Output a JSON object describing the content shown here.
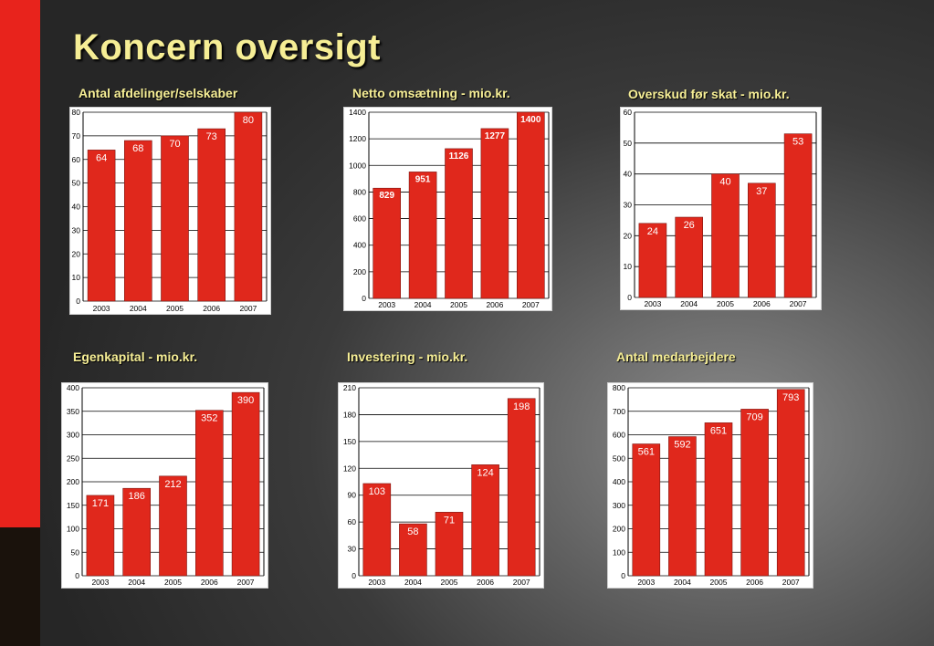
{
  "page_title": "Koncern oversigt",
  "colors": {
    "accent": "#e8231c",
    "title_text": "#f6ee95",
    "bar": "#e0281c"
  },
  "chart_data": [
    {
      "type": "bar",
      "title": "Antal afdelinger/selskaber",
      "categories": [
        "2003",
        "2004",
        "2005",
        "2006",
        "2007"
      ],
      "values": [
        64,
        68,
        70,
        73,
        80
      ],
      "ylim": [
        0,
        80
      ],
      "yticks": [
        0,
        10,
        20,
        30,
        40,
        50,
        60,
        70,
        80
      ],
      "grid": true,
      "data_labels": true
    },
    {
      "type": "bar",
      "title": "Netto omsætning - mio.kr.",
      "categories": [
        "2003",
        "2004",
        "2005",
        "2006",
        "2007"
      ],
      "values": [
        829,
        951,
        1126,
        1277,
        1400
      ],
      "ylim": [
        0,
        1400
      ],
      "yticks": [
        0,
        200,
        400,
        600,
        800,
        1000,
        1200,
        1400
      ],
      "grid": true,
      "data_labels": true
    },
    {
      "type": "bar",
      "title": "Overskud før skat - mio.kr.",
      "categories": [
        "2003",
        "2004",
        "2005",
        "2006",
        "2007"
      ],
      "values": [
        24,
        26,
        40,
        37,
        53
      ],
      "ylim": [
        0,
        60
      ],
      "yticks": [
        0,
        10,
        20,
        30,
        40,
        50,
        60
      ],
      "grid": true,
      "data_labels": true
    },
    {
      "type": "bar",
      "title": "Egenkapital - mio.kr.",
      "categories": [
        "2003",
        "2004",
        "2005",
        "2006",
        "2007"
      ],
      "values": [
        171,
        186,
        212,
        352,
        390
      ],
      "ylim": [
        0,
        400
      ],
      "yticks": [
        0,
        50,
        100,
        150,
        200,
        250,
        300,
        350,
        400
      ],
      "grid": true,
      "data_labels": true
    },
    {
      "type": "bar",
      "title": "Investering - mio.kr.",
      "categories": [
        "2003",
        "2004",
        "2005",
        "2006",
        "2007"
      ],
      "values": [
        103,
        58,
        71,
        124,
        198
      ],
      "ylim": [
        0,
        210
      ],
      "yticks": [
        0,
        30,
        60,
        90,
        120,
        150,
        180,
        210
      ],
      "grid": true,
      "data_labels": true
    },
    {
      "type": "bar",
      "title": "Antal medarbejdere",
      "categories": [
        "2003",
        "2004",
        "2005",
        "2006",
        "2007"
      ],
      "values": [
        561,
        592,
        651,
        709,
        793
      ],
      "ylim": [
        0,
        800
      ],
      "yticks": [
        0,
        100,
        200,
        300,
        400,
        500,
        600,
        700,
        800
      ],
      "grid": true,
      "data_labels": true
    }
  ]
}
